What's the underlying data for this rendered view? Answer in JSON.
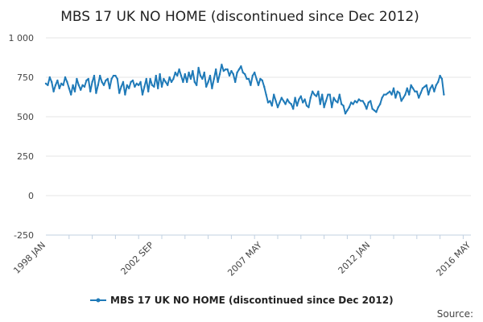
{
  "chart_data": {
    "type": "line",
    "title": "MBS 17 UK NO HOME (discontinued since Dec 2012)",
    "xlabel": "",
    "ylabel": "",
    "ylim": [
      -250,
      1000
    ],
    "yticks": [
      -250,
      0,
      250,
      500,
      750,
      1000
    ],
    "ytick_labels": [
      "-250",
      "0",
      "250",
      "500",
      "750",
      "1 000"
    ],
    "xlim": [
      "1998-01",
      "2016-05"
    ],
    "xticks": [
      {
        "date": "1998-01",
        "label": "1998 JAN"
      },
      {
        "date": "2002-09",
        "label": "2002 SEP"
      },
      {
        "date": "2007-05",
        "label": "2007 MAY"
      },
      {
        "date": "2012-01",
        "label": "2012 JAN"
      },
      {
        "date": "2016-05",
        "label": "2016 MAY"
      }
    ],
    "grid": true,
    "legend_position": "bottom",
    "series": [
      {
        "name": "MBS 17 UK NO HOME (discontinued since Dec 2012)",
        "color": "#1f7ab8",
        "start": "1998-01",
        "frequency": "monthly",
        "values": [
          710,
          700,
          750,
          720,
          660,
          700,
          730,
          680,
          710,
          700,
          750,
          720,
          680,
          640,
          700,
          660,
          740,
          700,
          670,
          700,
          690,
          730,
          740,
          660,
          720,
          760,
          650,
          700,
          760,
          720,
          700,
          730,
          740,
          680,
          740,
          760,
          760,
          740,
          650,
          690,
          720,
          640,
          700,
          680,
          720,
          730,
          690,
          710,
          700,
          720,
          640,
          690,
          740,
          660,
          740,
          700,
          690,
          760,
          680,
          770,
          690,
          740,
          720,
          700,
          750,
          720,
          740,
          780,
          760,
          800,
          760,
          720,
          770,
          720,
          780,
          740,
          790,
          720,
          700,
          810,
          760,
          740,
          780,
          690,
          720,
          760,
          680,
          740,
          800,
          720,
          770,
          830,
          790,
          800,
          800,
          760,
          790,
          770,
          720,
          780,
          800,
          820,
          780,
          770,
          740,
          740,
          700,
          760,
          780,
          740,
          700,
          740,
          730,
          690,
          640,
          590,
          600,
          570,
          640,
          600,
          560,
          590,
          620,
          600,
          580,
          610,
          590,
          580,
          550,
          620,
          570,
          610,
          630,
          590,
          610,
          570,
          560,
          620,
          660,
          640,
          630,
          660,
          580,
          640,
          560,
          600,
          640,
          640,
          560,
          620,
          600,
          590,
          640,
          580,
          570,
          520,
          540,
          560,
          590,
          580,
          600,
          590,
          610,
          600,
          600,
          580,
          550,
          590,
          600,
          550,
          540,
          530,
          560,
          580,
          620,
          640,
          640,
          650,
          660,
          640,
          680,
          620,
          660,
          650,
          600,
          620,
          640,
          680,
          640,
          700,
          680,
          660,
          660,
          620,
          650,
          680,
          690,
          700,
          640,
          680,
          700,
          660,
          700,
          720,
          760,
          740,
          640
        ]
      }
    ]
  },
  "legend": {
    "label": "MBS 17 UK NO HOME (discontinued since Dec 2012)"
  },
  "source_label": "Source:"
}
